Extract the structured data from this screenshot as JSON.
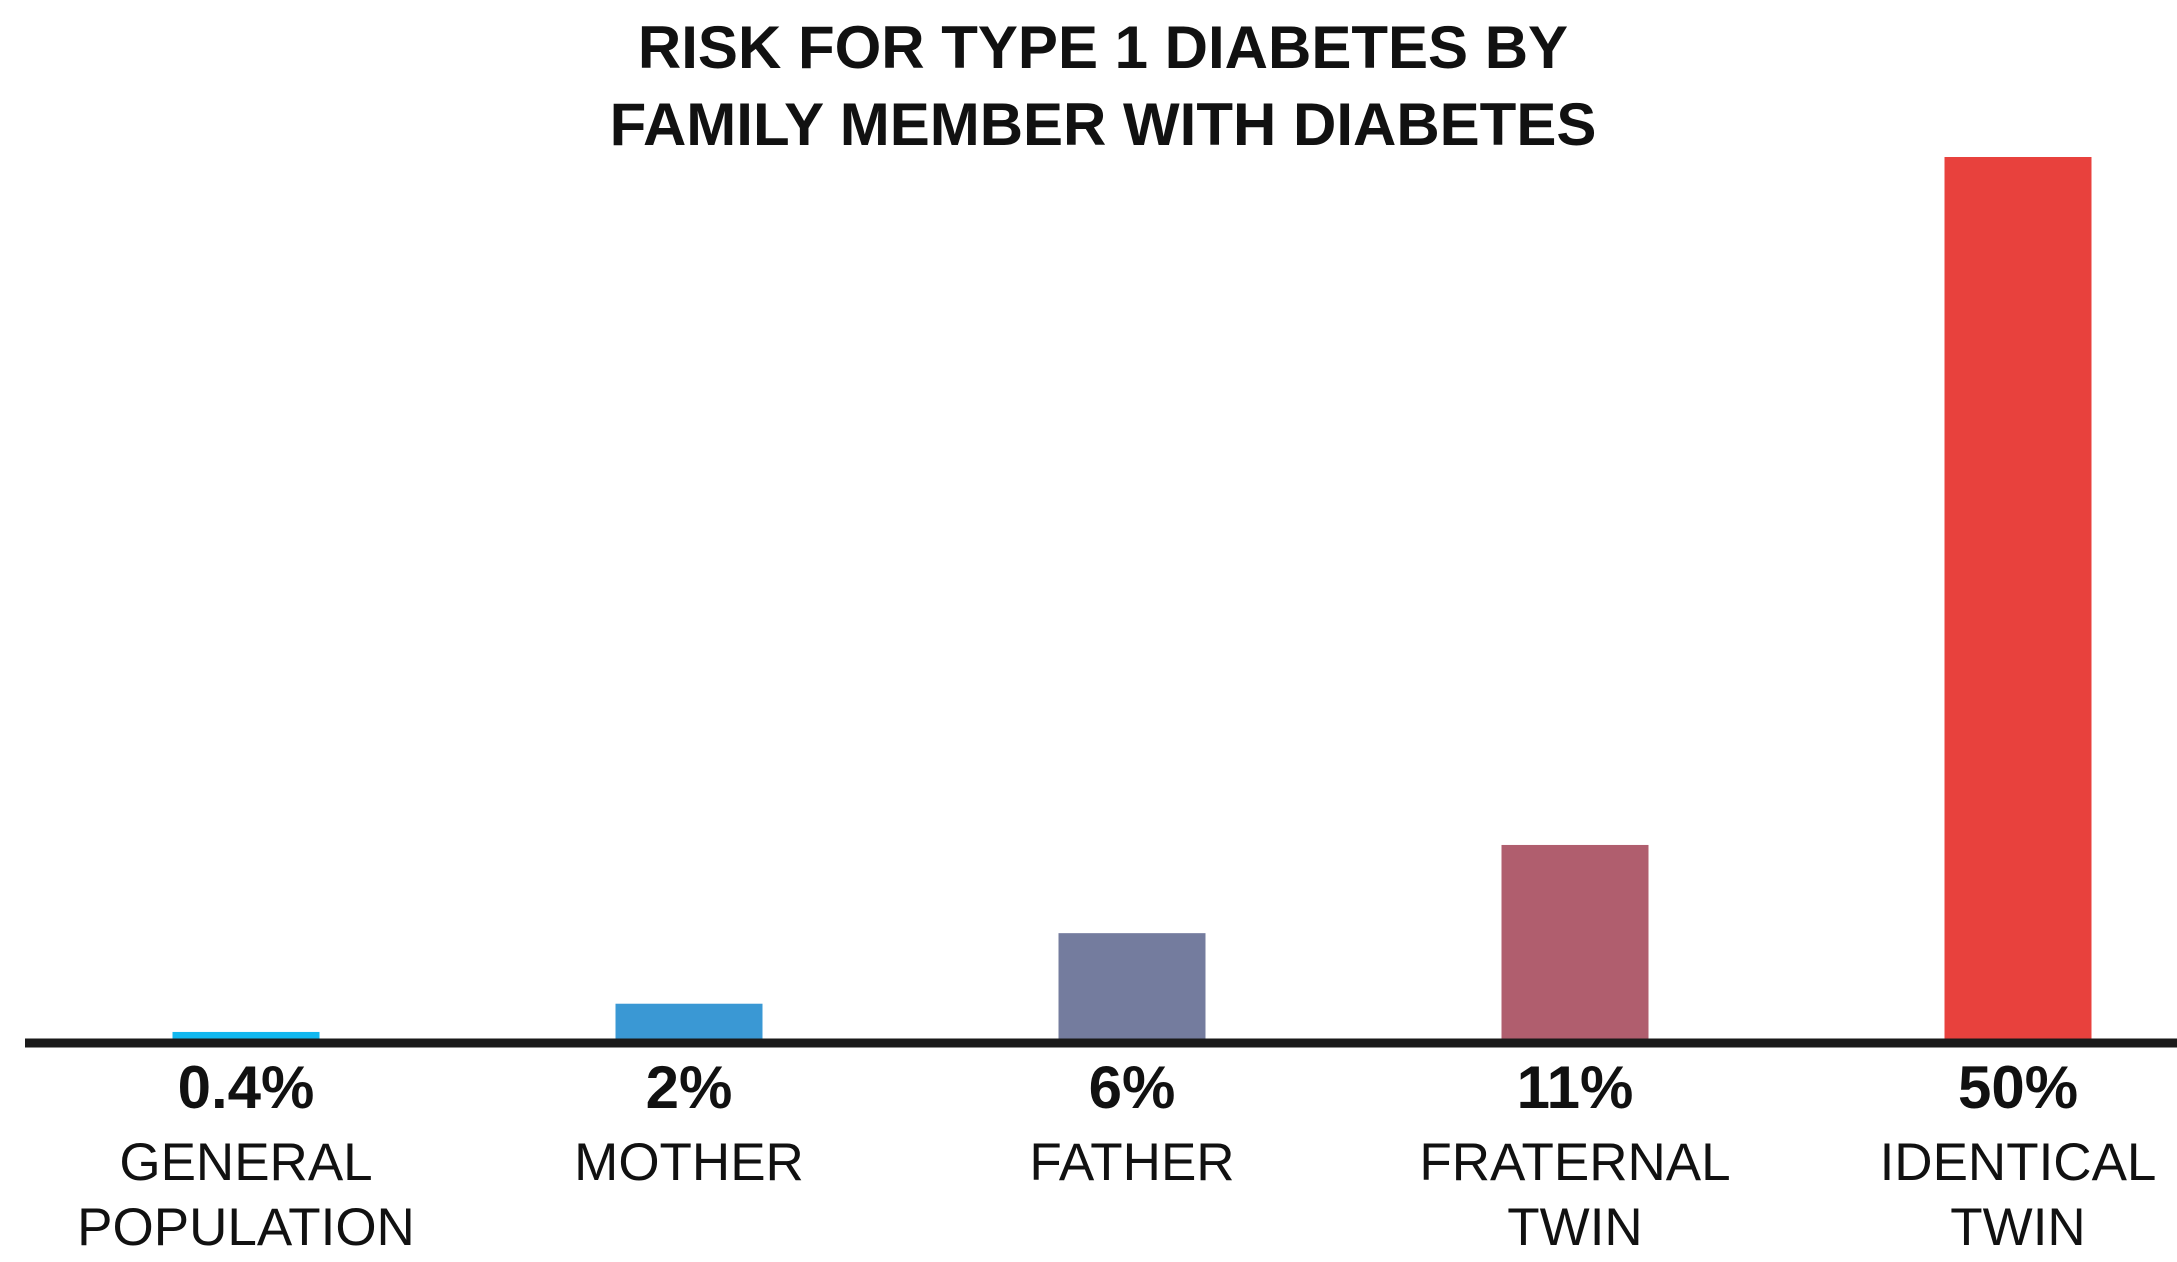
{
  "chart_data": {
    "type": "bar",
    "title_lines": [
      "RISK FOR TYPE 1 DIABETES BY",
      "FAMILY MEMBER WITH DIABETES"
    ],
    "categories": [
      [
        "GENERAL",
        "POPULATION"
      ],
      [
        "MOTHER"
      ],
      [
        "FATHER"
      ],
      [
        "FRATERNAL",
        "TWIN"
      ],
      [
        "IDENTICAL",
        "TWIN"
      ]
    ],
    "values": [
      0.4,
      2,
      6,
      11,
      50
    ],
    "value_labels": [
      "0.4%",
      "2%",
      "6%",
      "11%",
      "50%"
    ],
    "colors": [
      "#12b8ef",
      "#3a98d4",
      "#747c9e",
      "#b05e6e",
      "#e8413d"
    ],
    "ylim": [
      0,
      50
    ],
    "grid": false,
    "legend": "none"
  }
}
